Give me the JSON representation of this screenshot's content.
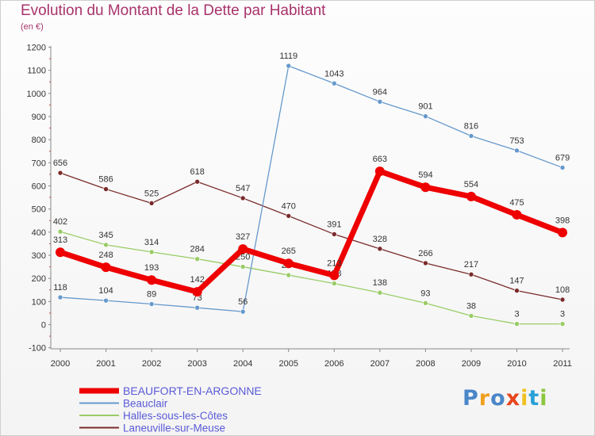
{
  "header": {
    "title": "Evolution du Montant de la Dette par Habitant",
    "subtitle": "(en €)"
  },
  "logo": {
    "text": "Proxiti",
    "letters": [
      "P",
      "r",
      "o",
      "x",
      "i",
      "t",
      "i"
    ],
    "colors": [
      "#4a86c8",
      "#f0a020",
      "#4a86c8",
      "#e8461e",
      "#f0c020",
      "#2aa0d8",
      "#8cc63f"
    ]
  },
  "chart_data": {
    "type": "line",
    "title": "Evolution du Montant de la Dette par Habitant",
    "subtitle": "(en €)",
    "x": [
      "2000",
      "2001",
      "2002",
      "2003",
      "2004",
      "2005",
      "2006",
      "2007",
      "2008",
      "2009",
      "2010",
      "2011"
    ],
    "yticks": [
      "1200",
      "1100",
      "1000",
      "900",
      "800",
      "700",
      "600",
      "500",
      "400",
      "300",
      "200",
      "100",
      "0",
      "-100"
    ],
    "ylim": [
      -100,
      1200
    ],
    "grid": false,
    "legend_position": "bottom-left",
    "series": [
      {
        "name": "Laneuville-sur-Meuse",
        "color": "#7a2a2a",
        "values": [
          656,
          586,
          525,
          618,
          547,
          470,
          391,
          328,
          266,
          217,
          147,
          108
        ],
        "labels": [
          "656",
          "586",
          "525",
          "618",
          "547",
          "470",
          "391",
          "328",
          "266",
          "217",
          "147",
          "108"
        ]
      },
      {
        "name": "Halles-sous-les-Côtes",
        "color": "#99cc66",
        "values": [
          402,
          345,
          314,
          284,
          250,
          214,
          178,
          138,
          93,
          38,
          3,
          3
        ],
        "labels": [
          "402",
          "345",
          "314",
          "284",
          "250",
          "214",
          "178",
          "138",
          "93",
          "38",
          "3",
          "3"
        ]
      },
      {
        "name": "Beauclair",
        "color": "#6699cc",
        "values": [
          118,
          104,
          89,
          73,
          56,
          1119,
          1043,
          964,
          901,
          816,
          753,
          679
        ],
        "labels": [
          "118",
          "104",
          "89",
          "73",
          "56",
          "1119",
          "1043",
          "964",
          "901",
          "816",
          "753",
          "679"
        ]
      },
      {
        "name": "BEAUFORT-EN-ARGONNE",
        "color": "#ee0000",
        "values": [
          313,
          248,
          193,
          142,
          327,
          265,
          213,
          663,
          594,
          554,
          475,
          398
        ],
        "labels": [
          "313",
          "248",
          "193",
          "142",
          "327",
          "265",
          "213",
          "663",
          "594",
          "554",
          "475",
          "398"
        ],
        "highlight": true
      }
    ],
    "legend": [
      {
        "name": "BEAUFORT-EN-ARGONNE",
        "color": "#ee0000"
      },
      {
        "name": "Beauclair",
        "color": "#6699cc"
      },
      {
        "name": "Halles-sous-les-Côtes",
        "color": "#99cc66"
      },
      {
        "name": "Laneuville-sur-Meuse",
        "color": "#7a2a2a"
      }
    ]
  }
}
